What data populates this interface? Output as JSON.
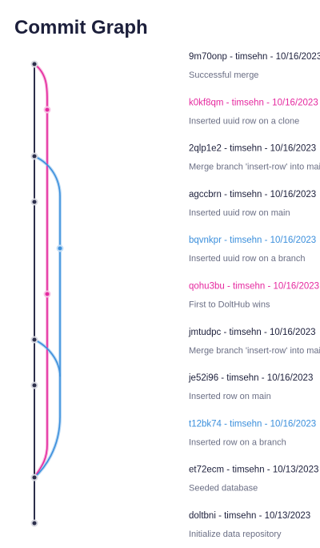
{
  "header": {
    "title": "Commit Graph"
  },
  "commits": [
    {
      "header": "9m70onp - timsehn - 10/16/2023",
      "message": "Successful merge"
    },
    {
      "header": "k0kf8qm - timsehn - 10/16/2023",
      "message": "Inserted uuid row on a clone"
    },
    {
      "header": "2qlp1e2 - timsehn - 10/16/2023",
      "message": "Merge branch 'insert-row' into main"
    },
    {
      "header": "agccbrn - timsehn - 10/16/2023",
      "message": "Inserted uuid row on main"
    },
    {
      "header": "bqvnkpr - timsehn - 10/16/2023",
      "message": "Inserted uuid row on a branch"
    },
    {
      "header": "qohu3bu - timsehn - 10/16/2023",
      "message": "First to DoltHub wins"
    },
    {
      "header": "jmtudpc - timsehn - 10/16/2023",
      "message": "Merge branch 'insert-row' into main"
    },
    {
      "header": "je52i96 - timsehn - 10/16/2023",
      "message": "Inserted row on main"
    },
    {
      "header": "t12bk74 - timsehn - 10/16/2023",
      "message": "Inserted row on a branch"
    },
    {
      "header": "et72ecm - timsehn - 10/13/2023",
      "message": "Seeded database"
    },
    {
      "header": "doltbni - timsehn - 10/13/2023",
      "message": "Initialize data repository"
    }
  ]
}
